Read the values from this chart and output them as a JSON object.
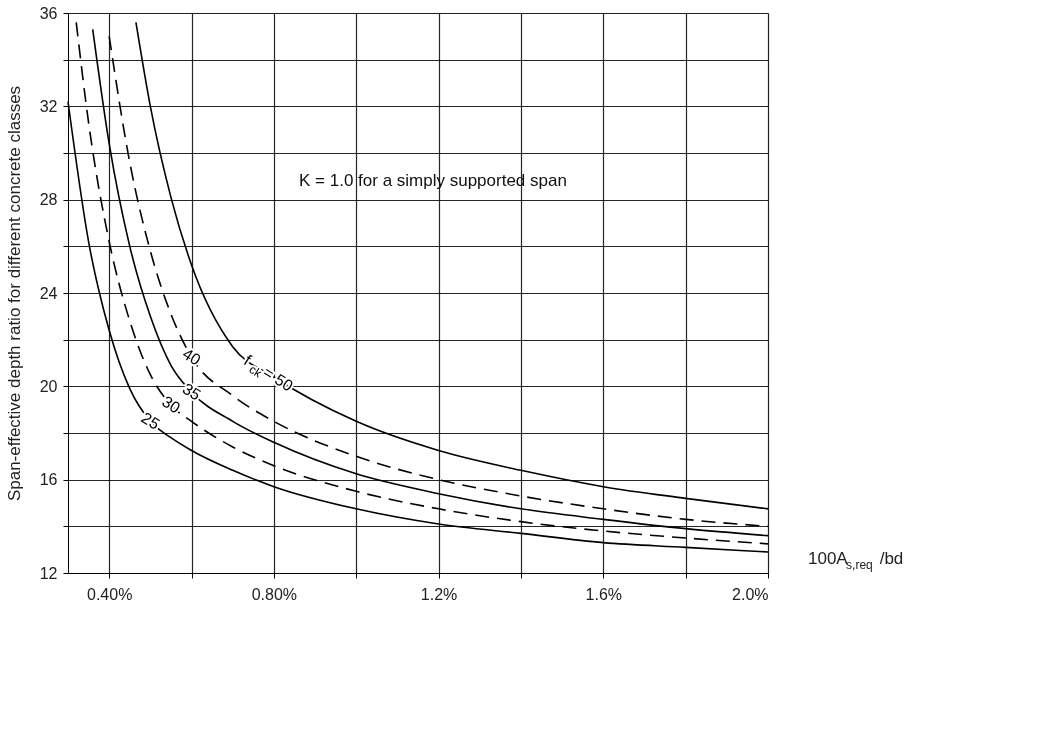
{
  "chart_data": {
    "type": "line",
    "xlabel": "100A$_{s,req}$/bd",
    "ylabel": "Span-effective depth ratio for different concrete classes",
    "annotations": [
      "K = 1.0 for a simply supported span"
    ],
    "xlim": [
      0.3,
      2.0
    ],
    "xticks": [
      {
        "value": 0.4,
        "label": "0.40%"
      },
      {
        "value": 0.6,
        "label": null
      },
      {
        "value": 0.8,
        "label": "0.80%"
      },
      {
        "value": 1.0,
        "label": null
      },
      {
        "value": 1.2,
        "label": "1.2%"
      },
      {
        "value": 1.4,
        "label": null
      },
      {
        "value": 1.6,
        "label": "1.6%"
      },
      {
        "value": 1.8,
        "label": null
      },
      {
        "value": 2.0,
        "label": "2.0%"
      }
    ],
    "ylim": [
      12,
      36
    ],
    "yticks": [
      12,
      {
        "value": 14,
        "label": null
      },
      16,
      {
        "value": 18,
        "label": null
      },
      20,
      {
        "value": 22,
        "label": null
      },
      24,
      {
        "value": 26,
        "label": null
      },
      28,
      {
        "value": 30,
        "label": null
      },
      32,
      {
        "value": 34,
        "label": null
      },
      36
    ],
    "grid": true,
    "series": [
      {
        "name": "25",
        "color": "#000000",
        "line_style": "solid",
        "x": [
          0.3,
          0.35,
          0.4,
          0.45,
          0.5,
          0.55,
          0.6,
          0.7,
          0.8,
          1.0,
          1.2,
          1.4,
          1.6,
          1.8,
          2.0
        ],
        "values": [
          32.2,
          26.2,
          22.4,
          19.9,
          18.5,
          17.8,
          17.25,
          16.4,
          15.7,
          14.75,
          14.1,
          13.7,
          13.3,
          13.1,
          12.9
        ]
      },
      {
        "name": "30",
        "color": "#000000",
        "line_style": "dashed",
        "x": [
          0.32,
          0.35,
          0.4,
          0.45,
          0.5,
          0.55,
          0.6,
          0.7,
          0.8,
          1.0,
          1.2,
          1.4,
          1.6,
          1.8,
          2.0
        ],
        "values": [
          35.6,
          31.3,
          26.2,
          22.8,
          20.5,
          19.2,
          18.5,
          17.4,
          16.6,
          15.5,
          14.75,
          14.2,
          13.8,
          13.5,
          13.25
        ]
      },
      {
        "name": "35",
        "color": "#000000",
        "line_style": "solid",
        "x": [
          0.36,
          0.4,
          0.45,
          0.5,
          0.55,
          0.6,
          0.7,
          0.8,
          1.0,
          1.2,
          1.4,
          1.6,
          1.8,
          2.0
        ],
        "values": [
          35.3,
          30.4,
          26.0,
          23.0,
          20.9,
          19.75,
          18.5,
          17.6,
          16.25,
          15.4,
          14.75,
          14.3,
          13.9,
          13.6
        ]
      },
      {
        "name": "40",
        "color": "#000000",
        "line_style": "dashed",
        "x": [
          0.4,
          0.45,
          0.5,
          0.55,
          0.6,
          0.7,
          0.8,
          1.0,
          1.2,
          1.4,
          1.6,
          1.8,
          2.0
        ],
        "values": [
          35.0,
          29.6,
          25.8,
          23.1,
          21.25,
          19.6,
          18.5,
          17.0,
          16.0,
          15.3,
          14.75,
          14.3,
          14.0
        ]
      },
      {
        "name": "f$_{ck}$ = 50",
        "color": "#000000",
        "line_style": "solid",
        "x": [
          0.465,
          0.5,
          0.55,
          0.6,
          0.7,
          0.8,
          1.0,
          1.2,
          1.4,
          1.6,
          1.8,
          2.0
        ],
        "values": [
          35.6,
          32.0,
          28.1,
          25.2,
          21.7,
          20.4,
          18.5,
          17.25,
          16.4,
          15.7,
          15.2,
          14.75
        ]
      }
    ]
  }
}
